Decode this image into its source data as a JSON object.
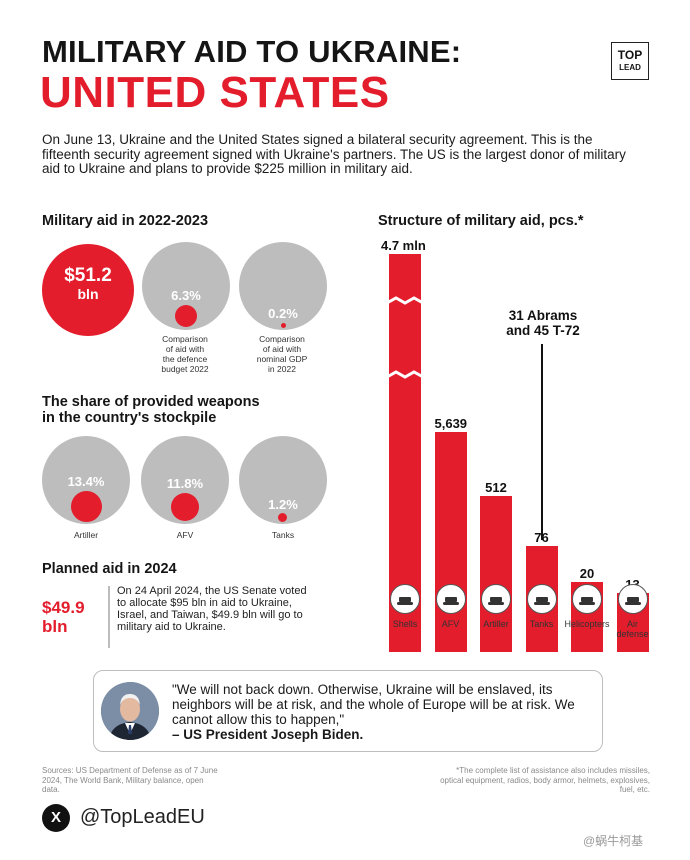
{
  "header": {
    "title_line1": "MILITARY AID TO UKRAINE:",
    "title_line2": "UNITED STATES",
    "logo_line1": "TOP",
    "logo_line2": "LEAD"
  },
  "intro": "On June 13, Ukraine and the United States signed a bilateral security agreement. This is the fifteenth security agreement signed with Ukraine's partners. The US is the largest donor of military aid to Ukraine and plans to provide $225 million in military aid.",
  "aid_2022_2023": {
    "heading": "Military aid in 2022-2023",
    "total_value": "$51.2",
    "total_unit": "bln",
    "comparisons": [
      {
        "value": "6.3%",
        "caption_l1": "Comparison",
        "caption_l2": "of aid with",
        "caption_l3": "the defence",
        "caption_l4": "budget 2022"
      },
      {
        "value": "0.2%",
        "caption_l1": "Comparison",
        "caption_l2": "of aid with",
        "caption_l3": "nominal GDP",
        "caption_l4": "in 2022"
      }
    ]
  },
  "stockpile": {
    "heading_l1": "The share of provided weapons",
    "heading_l2": "in the country's stockpile",
    "items": [
      {
        "value": "13.4%",
        "label": "Artiller"
      },
      {
        "value": "11.8%",
        "label": "AFV"
      },
      {
        "value": "1.2%",
        "label": "Tanks"
      }
    ]
  },
  "planned": {
    "heading": "Planned aid in 2024",
    "value_l1": "$49.9",
    "value_l2": "bln",
    "text": "On 24 April 2024, the US Senate voted to allocate $95 bln in aid to Ukraine, Israel, and Taiwan, $49.9 bln will go to military aid to Ukraine."
  },
  "chart_data": {
    "type": "bar",
    "title": "Structure of military aid, pcs.*",
    "categories": [
      "Shells",
      "AFV",
      "Artiller",
      "Tanks",
      "Helicopters",
      "Air defense"
    ],
    "values": [
      4700000,
      5639,
      512,
      76,
      20,
      13
    ],
    "value_labels": [
      "4.7 mln",
      "5,639",
      "512",
      "76",
      "20",
      "13"
    ],
    "label_lines": [
      [
        "Shells"
      ],
      [
        "AFV"
      ],
      [
        "Artiller"
      ],
      [
        "Tanks"
      ],
      [
        "Helicopters"
      ],
      [
        "Air",
        "defense"
      ]
    ],
    "broken_axis": true,
    "annotation_l1": "31 Abrams",
    "annotation_l2": "and 45 T-72",
    "color": "#e31d2c"
  },
  "quote": {
    "text": "\"We will not back down. Otherwise, Ukraine will be enslaved, its neighbors will be at risk, and the whole of Europe will be at risk. We cannot allow this to happen,\"",
    "author": "– US President Joseph Biden."
  },
  "footer": {
    "sources": "Sources: US Department of Defense as of 7 June 2024, The World Bank, Military balance, open data.",
    "note": "*The complete list of assistance also includes missiles, optical equipment, radios, body armor, helmets, explosives, fuel, etc.",
    "x_glyph": "X",
    "handle": "@TopLeadEU",
    "watermark": "@蜗牛柯基"
  },
  "colors": {
    "accent": "#e31d2c",
    "grey": "#bdbdbd"
  }
}
